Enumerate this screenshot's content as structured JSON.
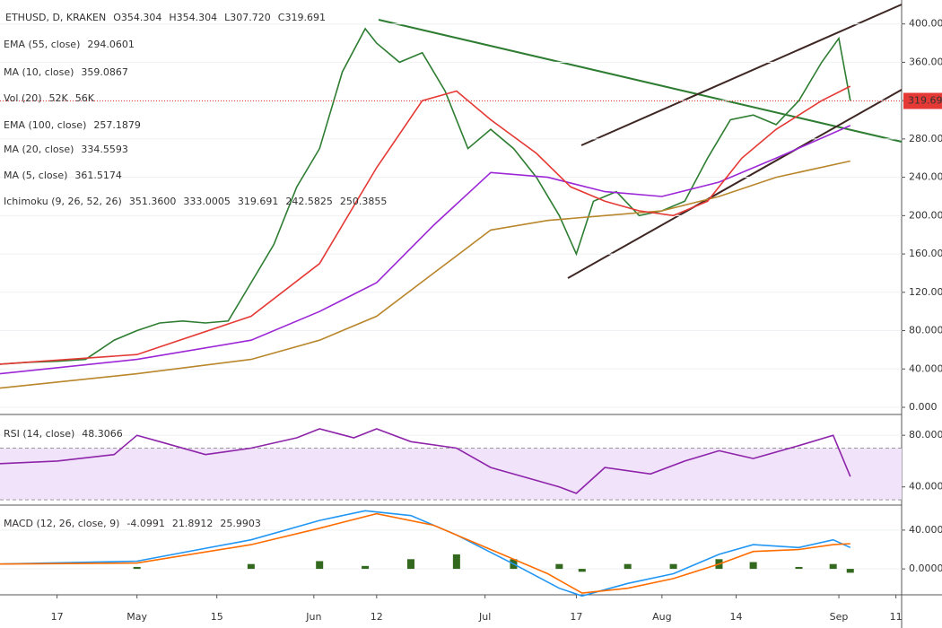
{
  "chart_data": [
    {
      "type": "line",
      "header": {
        "symbol": "ETHUSD, D, KRAKEN",
        "open": "O354.304",
        "high": "H354.304",
        "low": "L307.720",
        "close": "C319.691"
      },
      "last_price": {
        "value": 319.691,
        "label": "319.691"
      },
      "indicators": [
        {
          "name": "EMA (55, close)",
          "value": "294.0601",
          "color": "#9c27d6"
        },
        {
          "name": "MA (10, close)",
          "value": "359.0867",
          "color": "#222222"
        },
        {
          "name": "Vol (20)",
          "value": "52K",
          "value2": "56K",
          "color": "#e53935"
        },
        {
          "name": "EMA (100, close)",
          "value": "257.1879",
          "color": "#b8862b"
        },
        {
          "name": "MA (20, close)",
          "value": "334.5593",
          "color": "#e53935"
        },
        {
          "name": "MA (5, close)",
          "value": "361.5174",
          "color": "#3f51b5"
        },
        {
          "name": "Ichimoku (9, 26, 52, 26)",
          "values": [
            "351.3600",
            "333.0005",
            "319.691",
            "242.5825",
            "250.3855"
          ],
          "colors": [
            "#2196f3",
            "#880e4f",
            "#4caf50",
            "#4caf50",
            "#e53935"
          ]
        }
      ],
      "xlim": [
        -10,
        148
      ],
      "ylim": [
        -7.5,
        425
      ],
      "yticks": [
        {
          "value": 0,
          "label": "0.000"
        },
        {
          "value": 40,
          "label": "40.000"
        },
        {
          "value": 80,
          "label": "80.000"
        },
        {
          "value": 120,
          "label": "120.000"
        },
        {
          "value": 160,
          "label": "160.000"
        },
        {
          "value": 200,
          "label": "200.000"
        },
        {
          "value": 240,
          "label": "240.000"
        },
        {
          "value": 280,
          "label": "280.000"
        },
        {
          "value": 320,
          "label": "320.000"
        },
        {
          "value": 360,
          "label": "360.000"
        },
        {
          "value": 400,
          "label": "400.000"
        }
      ],
      "series": [
        {
          "name": "ETHUSD",
          "color": "#2e7d32",
          "x": [
            -10,
            -5,
            0,
            5,
            10,
            14,
            18,
            22,
            26,
            30,
            34,
            38,
            42,
            46,
            50,
            54,
            56,
            60,
            64,
            68,
            72,
            76,
            80,
            84,
            88,
            91,
            94,
            98,
            102,
            106,
            110,
            114,
            118,
            122,
            126,
            130,
            134,
            137,
            139
          ],
          "values": [
            45,
            47,
            48,
            50,
            70,
            80,
            88,
            90,
            88,
            90,
            130,
            170,
            230,
            270,
            350,
            395,
            380,
            360,
            370,
            330,
            270,
            290,
            270,
            240,
            200,
            160,
            215,
            225,
            200,
            205,
            215,
            260,
            300,
            305,
            295,
            320,
            360,
            385,
            320
          ]
        },
        {
          "name": "EMA (55, close)",
          "color": "#9c27d6",
          "x": [
            -10,
            14,
            34,
            46,
            56,
            66,
            76,
            86,
            96,
            106,
            116,
            126,
            139
          ],
          "values": [
            35,
            50,
            70,
            100,
            130,
            190,
            245,
            240,
            225,
            220,
            235,
            260,
            294
          ]
        },
        {
          "name": "EMA (100, close)",
          "color": "#b8862b",
          "x": [
            -10,
            14,
            34,
            46,
            56,
            66,
            76,
            86,
            96,
            106,
            116,
            126,
            139
          ],
          "values": [
            20,
            35,
            50,
            70,
            95,
            140,
            185,
            195,
            200,
            205,
            220,
            240,
            257
          ]
        },
        {
          "name": "MA (20, close)",
          "color": "#e53935",
          "x": [
            -10,
            14,
            34,
            46,
            56,
            64,
            70,
            76,
            84,
            90,
            96,
            102,
            108,
            114,
            120,
            126,
            134,
            139
          ],
          "values": [
            45,
            55,
            95,
            150,
            250,
            320,
            330,
            300,
            265,
            230,
            215,
            205,
            200,
            215,
            260,
            290,
            320,
            335
          ]
        }
      ]
    },
    {
      "type": "line",
      "label": "RSI (14, close)",
      "value": "48.3066",
      "xlim": [
        -10,
        148
      ],
      "ylim": [
        28,
        94
      ],
      "yticks": [
        {
          "value": 40,
          "label": "40.0000"
        },
        {
          "value": 80,
          "label": "80.0000"
        }
      ],
      "band": [
        30,
        70
      ],
      "series": [
        {
          "name": "RSI",
          "color": "#8e24aa",
          "x": [
            -10,
            0,
            10,
            14,
            18,
            26,
            34,
            42,
            46,
            52,
            56,
            62,
            70,
            76,
            84,
            88,
            91,
            96,
            104,
            110,
            116,
            122,
            130,
            136,
            139
          ],
          "values": [
            58,
            60,
            65,
            80,
            75,
            65,
            70,
            78,
            85,
            78,
            85,
            75,
            70,
            55,
            45,
            40,
            35,
            55,
            50,
            60,
            68,
            62,
            72,
            80,
            48
          ]
        }
      ]
    },
    {
      "type": "line",
      "label": "MACD (12, 26, close, 9)",
      "values_text": [
        "-4.0991",
        "21.8912",
        "25.9903"
      ],
      "colors": [
        "#33691e",
        "#2196f3",
        "#ff6d00"
      ],
      "xlim": [
        -10,
        148
      ],
      "ylim": [
        -24,
        64
      ],
      "yticks": [
        {
          "value": 0,
          "label": "0.0000"
        },
        {
          "value": 40,
          "label": "40.0000"
        }
      ],
      "xticks": [
        {
          "value": 0,
          "label": "17"
        },
        {
          "value": 14,
          "label": "May"
        },
        {
          "value": 28,
          "label": "15"
        },
        {
          "value": 45,
          "label": "Jun"
        },
        {
          "value": 56,
          "label": "12"
        },
        {
          "value": 75,
          "label": "Jul"
        },
        {
          "value": 91,
          "label": "17"
        },
        {
          "value": 106,
          "label": "Aug"
        },
        {
          "value": 119,
          "label": "14"
        },
        {
          "value": 137,
          "label": "Sep"
        },
        {
          "value": 147,
          "label": "11"
        }
      ],
      "series": [
        {
          "name": "Histogram",
          "style": "histogram",
          "color": "#33691e",
          "x": [
            -10,
            14,
            34,
            46,
            54,
            62,
            70,
            80,
            88,
            92,
            100,
            108,
            116,
            122,
            130,
            136,
            139
          ],
          "values": [
            0,
            2,
            5,
            8,
            3,
            10,
            15,
            10,
            5,
            -3,
            5,
            5,
            10,
            7,
            2,
            5,
            -4
          ]
        },
        {
          "name": "MACD",
          "color": "#2196f3",
          "x": [
            -10,
            14,
            34,
            46,
            54,
            62,
            70,
            80,
            88,
            92,
            100,
            108,
            116,
            122,
            130,
            136,
            139
          ],
          "values": [
            5,
            8,
            30,
            50,
            60,
            55,
            35,
            5,
            -20,
            -28,
            -15,
            -5,
            15,
            25,
            22,
            30,
            22
          ]
        },
        {
          "name": "Signal",
          "color": "#ff6d00",
          "x": [
            -10,
            14,
            34,
            46,
            56,
            66,
            76,
            86,
            92,
            100,
            108,
            116,
            122,
            130,
            136,
            139
          ],
          "values": [
            5,
            6,
            25,
            42,
            57,
            45,
            20,
            -5,
            -25,
            -20,
            -10,
            5,
            18,
            20,
            25,
            26
          ]
        }
      ]
    }
  ]
}
